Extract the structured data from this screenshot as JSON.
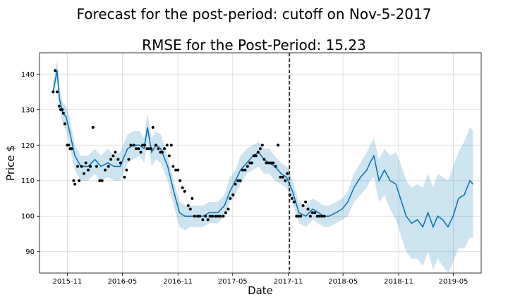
{
  "chart_data": {
    "type": "line",
    "title": "Forecast for the post-period: cutoff on Nov-5-2017",
    "subtitle": "RMSE for the Post-Period: 15.23",
    "xlabel": "Date",
    "ylabel": "Price $",
    "x_ticks": [
      "2015-11",
      "2016-05",
      "2016-11",
      "2017-05",
      "2017-11",
      "2018-05",
      "2018-11",
      "2019-05"
    ],
    "y_ticks": [
      90,
      100,
      110,
      120,
      130,
      140
    ],
    "xlim": [
      "2015-08-01",
      "2019-08-01"
    ],
    "ylim": [
      84,
      146
    ],
    "grid": true,
    "cutoff_date": "2017-11-05",
    "colors": {
      "forecast": "#0072B2",
      "band": "#0072B2",
      "points": "#000000",
      "cutoff": "#222222",
      "grid": "#d9d9d9"
    },
    "forecast": {
      "x": [
        "2015-09-15",
        "2015-09-28",
        "2015-10-06",
        "2015-10-17",
        "2015-10-28",
        "2015-11-08",
        "2015-11-26",
        "2015-12-16",
        "2016-01-09",
        "2016-01-31",
        "2016-02-20",
        "2016-03-14",
        "2016-04-04",
        "2016-04-24",
        "2016-05-18",
        "2016-06-07",
        "2016-06-27",
        "2016-07-12",
        "2016-07-23",
        "2016-08-06",
        "2016-08-20",
        "2016-09-05",
        "2016-09-28",
        "2016-10-18",
        "2016-11-06",
        "2016-11-24",
        "2016-12-11",
        "2017-01-01",
        "2017-01-24",
        "2017-02-12",
        "2017-03-13",
        "2017-04-04",
        "2017-04-22",
        "2017-05-10",
        "2017-05-27",
        "2017-06-17",
        "2017-07-07",
        "2017-07-26",
        "2017-08-12",
        "2017-08-30",
        "2017-09-17",
        "2017-10-08",
        "2017-10-26",
        "2017-11-05",
        "2017-11-15",
        "2017-12-06",
        "2017-12-29",
        "2018-01-21",
        "2018-02-09",
        "2018-02-26",
        "2018-03-16",
        "2018-04-08",
        "2018-04-28",
        "2018-05-17",
        "2018-06-06",
        "2018-06-28",
        "2018-07-19",
        "2018-07-29",
        "2018-08-11",
        "2018-08-28",
        "2018-09-15",
        "2018-10-04",
        "2018-10-23",
        "2018-11-07",
        "2018-11-26",
        "2018-12-14",
        "2019-01-02",
        "2019-01-20",
        "2019-02-06",
        "2019-02-23",
        "2019-03-10",
        "2019-03-27",
        "2019-04-13",
        "2019-04-30",
        "2019-05-18",
        "2019-06-06",
        "2019-06-25",
        "2019-07-05"
      ],
      "y": [
        135,
        141,
        133,
        129,
        128,
        124,
        117,
        114,
        114,
        116,
        114,
        115,
        114,
        114,
        119,
        120,
        120,
        119,
        125,
        118,
        120,
        119,
        114,
        107,
        101,
        100,
        100,
        100,
        100,
        101,
        101,
        103,
        107,
        110,
        113,
        115,
        117,
        118,
        116,
        115,
        114,
        112,
        111,
        109,
        107,
        101,
        100,
        102,
        101,
        100,
        100,
        101,
        102,
        104,
        108,
        111,
        113,
        115,
        117,
        110,
        113,
        110,
        109,
        105,
        100,
        98,
        99,
        97,
        101,
        97,
        100,
        99,
        97,
        100,
        105,
        106,
        110,
        109
      ],
      "lower": [
        133,
        138,
        130,
        126,
        124,
        120,
        113,
        110,
        110,
        112,
        110,
        111,
        110,
        110,
        115,
        116,
        117,
        115,
        121,
        114,
        116,
        115,
        110,
        103,
        97,
        96,
        97,
        97,
        97,
        98,
        98,
        100,
        104,
        106,
        109,
        112,
        113,
        114,
        112,
        112,
        110,
        109,
        108,
        106,
        104,
        98,
        97,
        99,
        98,
        97,
        97,
        98,
        99,
        100,
        104,
        106,
        108,
        110,
        111,
        104,
        106,
        102,
        99,
        95,
        90,
        88,
        88,
        86,
        90,
        85,
        88,
        86,
        84,
        87,
        91,
        91,
        94,
        94
      ],
      "upper": [
        138,
        144,
        136,
        132,
        131,
        128,
        120,
        117,
        117,
        119,
        117,
        119,
        117,
        118,
        123,
        124,
        124,
        122,
        129,
        122,
        124,
        123,
        117,
        110,
        104,
        103,
        103,
        103,
        103,
        104,
        104,
        106,
        111,
        113,
        117,
        119,
        120,
        121,
        119,
        119,
        117,
        115,
        114,
        113,
        110,
        104,
        103,
        105,
        104,
        103,
        103,
        104,
        105,
        107,
        112,
        115,
        118,
        120,
        122,
        116,
        119,
        117,
        118,
        115,
        110,
        108,
        109,
        108,
        112,
        108,
        112,
        111,
        110,
        114,
        118,
        121,
        125,
        124
      ]
    },
    "observed": {
      "x": [
        "2015-09-15",
        "2015-09-22",
        "2015-09-28",
        "2015-10-05",
        "2015-10-10",
        "2015-10-15",
        "2015-10-19",
        "2015-10-24",
        "2015-11-01",
        "2015-11-05",
        "2015-11-10",
        "2015-11-15",
        "2015-11-22",
        "2015-11-26",
        "2015-12-05",
        "2015-12-10",
        "2015-12-18",
        "2015-12-26",
        "2016-01-01",
        "2016-01-09",
        "2016-01-16",
        "2016-01-25",
        "2016-02-06",
        "2016-02-16",
        "2016-02-24",
        "2016-03-05",
        "2016-03-16",
        "2016-03-24",
        "2016-04-01",
        "2016-04-08",
        "2016-04-17",
        "2016-04-25",
        "2016-05-08",
        "2016-05-15",
        "2016-05-22",
        "2016-05-29",
        "2016-06-08",
        "2016-06-16",
        "2016-06-24",
        "2016-07-01",
        "2016-07-07",
        "2016-07-14",
        "2016-07-22",
        "2016-07-28",
        "2016-08-04",
        "2016-08-10",
        "2016-08-20",
        "2016-08-28",
        "2016-09-04",
        "2016-09-10",
        "2016-09-17",
        "2016-09-26",
        "2016-10-03",
        "2016-10-10",
        "2016-10-16",
        "2016-10-25",
        "2016-11-01",
        "2016-11-08",
        "2016-11-16",
        "2016-11-23",
        "2016-12-05",
        "2016-12-12",
        "2016-12-18",
        "2016-12-26",
        "2017-01-05",
        "2017-01-12",
        "2017-01-22",
        "2017-01-31",
        "2017-02-08",
        "2017-02-15",
        "2017-02-23",
        "2017-03-05",
        "2017-03-13",
        "2017-03-21",
        "2017-03-31",
        "2017-04-08",
        "2017-04-16",
        "2017-04-23",
        "2017-05-02",
        "2017-05-10",
        "2017-05-18",
        "2017-05-26",
        "2017-06-03",
        "2017-06-11",
        "2017-06-19",
        "2017-06-27",
        "2017-07-03",
        "2017-07-10",
        "2017-07-17",
        "2017-07-24",
        "2017-07-31",
        "2017-08-07",
        "2017-08-13",
        "2017-08-20",
        "2017-08-28",
        "2017-09-05",
        "2017-09-12",
        "2017-09-20",
        "2017-09-28",
        "2017-10-06",
        "2017-10-14",
        "2017-10-22",
        "2017-10-29",
        "2017-11-06",
        "2017-11-13",
        "2017-11-20",
        "2017-11-28",
        "2017-12-05",
        "2017-12-12",
        "2017-12-20",
        "2017-12-28",
        "2018-01-05",
        "2018-01-13",
        "2018-01-20",
        "2018-01-28",
        "2018-02-05",
        "2018-02-12",
        "2018-02-20",
        "2018-02-28"
      ],
      "y": [
        135,
        141,
        135,
        131,
        130,
        130,
        129,
        126,
        120,
        120,
        119,
        119,
        110,
        109,
        114,
        110,
        114,
        112,
        115,
        113,
        114,
        125,
        114,
        110,
        110,
        113,
        114,
        116,
        117,
        118,
        116,
        115,
        111,
        113,
        116,
        120,
        120,
        119,
        119,
        118,
        120,
        120,
        119,
        119,
        119,
        125,
        120,
        119,
        118,
        118,
        119,
        120,
        117,
        120,
        114,
        113,
        113,
        110,
        108,
        107,
        103,
        102,
        105,
        100,
        100,
        100,
        99,
        100,
        99,
        100,
        100,
        100,
        100,
        100,
        100,
        101,
        102,
        105,
        106,
        109,
        110,
        110,
        113,
        113,
        114,
        115,
        115,
        117,
        117,
        118,
        119,
        120,
        116,
        115,
        115,
        115,
        115,
        114,
        120,
        111,
        111,
        110,
        112,
        106,
        105,
        104,
        100,
        100,
        100,
        103,
        104,
        102,
        100,
        101,
        101,
        100,
        100,
        100,
        100
      ]
    }
  }
}
